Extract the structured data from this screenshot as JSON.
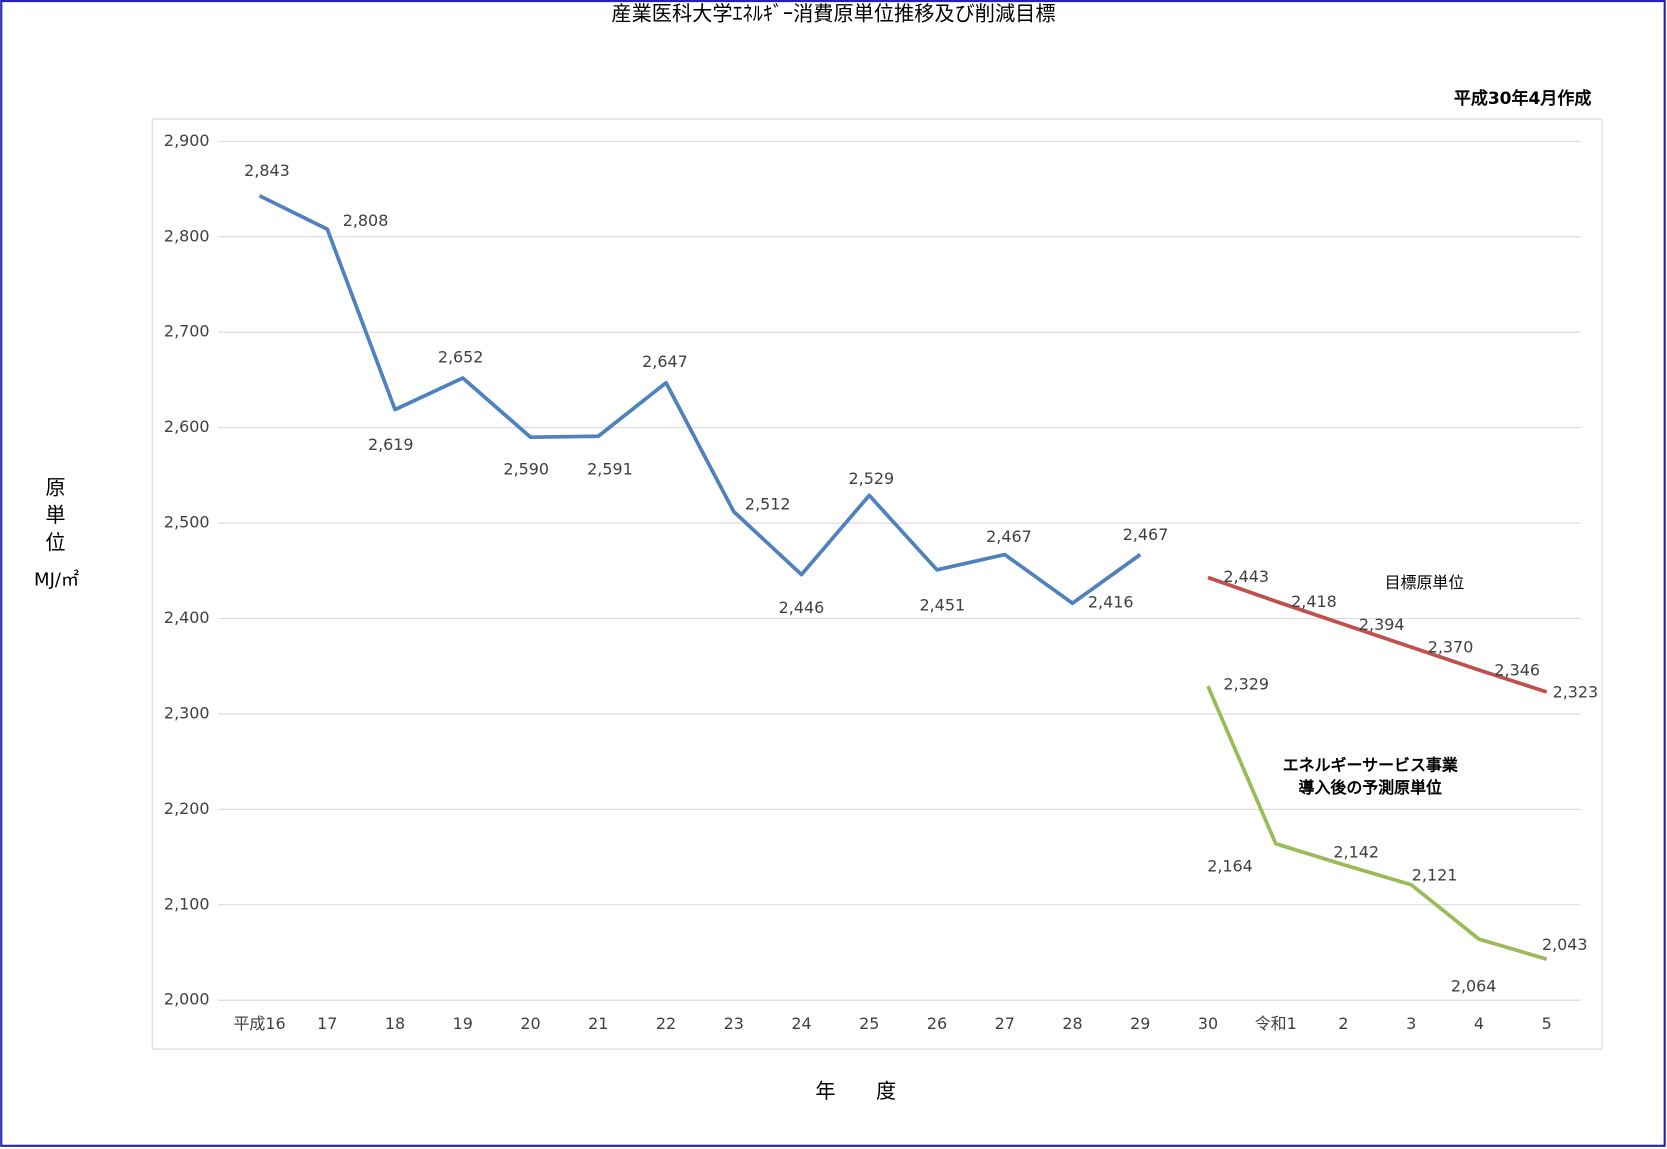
{
  "chart_data": {
    "type": "line",
    "title": "産業医科大学ｴﾈﾙｷﾞｰ消費原単位推移及び削減目標",
    "subtitle": "平成30年4月作成",
    "y_label": "原\n単\n位",
    "y_unit": "MJ/㎡",
    "x_label": "年　　度",
    "categories": [
      "平成16",
      "17",
      "18",
      "19",
      "20",
      "21",
      "22",
      "23",
      "24",
      "25",
      "26",
      "27",
      "28",
      "29",
      "30",
      "令和1",
      "2",
      "3",
      "4",
      "5"
    ],
    "series": [
      {
        "color": "#4f81bd",
        "values": [
          2843,
          2808,
          2619,
          2652,
          2590,
          2591,
          2647,
          2512,
          2446,
          2529,
          2451,
          2467,
          2416,
          2467,
          null,
          null,
          null,
          null,
          null,
          null
        ],
        "value_labels": [
          "2,843",
          "2,808",
          "2,619",
          "2,652",
          "2,590",
          "2,591",
          "2,647",
          "2,512",
          "2,446",
          "2,529",
          "2,451",
          "2,467",
          "2,416",
          "2,467",
          null,
          null,
          null,
          null,
          null,
          null
        ]
      },
      {
        "name": "目標原単位",
        "color": "#c0504d",
        "values": [
          null,
          null,
          null,
          null,
          null,
          null,
          null,
          null,
          null,
          null,
          null,
          null,
          null,
          null,
          2443,
          2418,
          2394,
          2370,
          2346,
          2323
        ],
        "value_labels": [
          null,
          null,
          null,
          null,
          null,
          null,
          null,
          null,
          null,
          null,
          null,
          null,
          null,
          null,
          "2,443",
          "2,418",
          "2,394",
          "2,370",
          "2,346",
          "2,323"
        ]
      },
      {
        "name": "エネルギーサービス事業\n導入後の予測原単位",
        "color": "#9bbb59",
        "values": [
          null,
          null,
          null,
          null,
          null,
          null,
          null,
          null,
          null,
          null,
          null,
          null,
          null,
          null,
          2329,
          2164,
          2142,
          2121,
          2064,
          2043
        ],
        "value_labels": [
          null,
          null,
          null,
          null,
          null,
          null,
          null,
          null,
          null,
          null,
          null,
          null,
          null,
          null,
          "2,329",
          "2,164",
          "2,142",
          "2,121",
          "2,064",
          "2,043"
        ]
      }
    ],
    "ylim": [
      2000,
      2900
    ],
    "yticks": [
      {
        "value": 2000,
        "label": "2,000"
      },
      {
        "value": 2100,
        "label": "2,100"
      },
      {
        "value": 2200,
        "label": "2,200"
      },
      {
        "value": 2300,
        "label": "2,300"
      },
      {
        "value": 2400,
        "label": "2,400"
      },
      {
        "value": 2500,
        "label": "2,500"
      },
      {
        "value": 2600,
        "label": "2,600"
      },
      {
        "value": 2700,
        "label": "2,700"
      },
      {
        "value": 2800,
        "label": "2,800"
      },
      {
        "value": 2900,
        "label": "2,900"
      }
    ],
    "grid": true
  }
}
